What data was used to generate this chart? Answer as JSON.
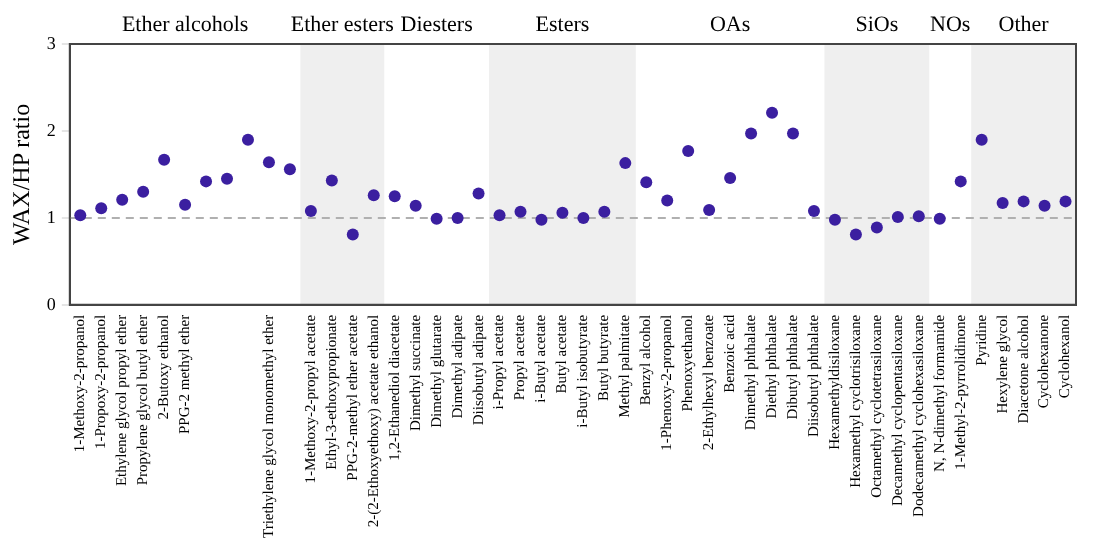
{
  "chart_data": {
    "type": "scatter",
    "ylabel": "WAX/HP ratio",
    "categories": [
      "1-Methoxy-2-propanol",
      "1-Propoxy-2-propanol",
      "Ethylene glycol propyl ether",
      "Propylene glycol butyl ether",
      "2-Butoxy ethanol",
      "PPG-2 methyl ether",
      null,
      null,
      null,
      "Triethylene glycol monomethyl ether",
      null,
      "1-Methoxy-2-propyl acetate",
      "Ethyl-3-ethoxypropionate",
      "PPG-2-methyl ether acetate",
      "2-(2-Ethoxyethoxy) acetate ethanol",
      "1,2-Ethanediol diacetate",
      "Dimethyl succinate",
      "Dimethyl glutarate",
      "Dimethyl adipate",
      "Diisobutyl adipate",
      "i-Propyl acetate",
      "Propyl acetate",
      "i-Butyl acetate",
      "Butyl acetate",
      "i-Butyl isobutyrate",
      "Butyl butyrate",
      "Methyl palmitate",
      "Benzyl alcohol",
      "1-Phenoxy-2-propanol",
      "Phenoxyethanol",
      "2-Ethylhexyl benzoate",
      "Benzoic acid",
      "Dimethyl phthalate",
      "Diethyl phthalate",
      "Dibutyl phthalate",
      "Diisobutyl phthalate",
      "Hexamethyldisiloxane",
      "Hexamethyl cyclotrisiloxane",
      "Octamethyl cyclotetrasiloxane",
      "Decamethyl cyclopentasiloxane",
      "Dodecamethyl cyclohexasiloxane",
      "N, N-dimethyl formamide",
      "1-Methyl-2-pyrrolidinone",
      "Pyridine",
      "Hexylene glycol",
      "Diacetone alcohol",
      "Cyclohexanone",
      "Cyclohexanol"
    ],
    "series": [
      {
        "color": "#3b1fa0",
        "values": [
          1.03,
          1.11,
          1.21,
          1.3,
          1.67,
          1.15,
          1.42,
          1.45,
          1.9,
          1.64,
          1.56,
          1.08,
          1.43,
          0.81,
          1.26,
          1.25,
          1.14,
          0.99,
          1.0,
          1.28,
          1.03,
          1.07,
          0.98,
          1.06,
          1.0,
          1.07,
          1.63,
          1.41,
          1.2,
          1.77,
          1.09,
          1.46,
          1.97,
          2.21,
          1.97,
          1.08,
          0.98,
          0.81,
          0.89,
          1.01,
          1.02,
          0.99,
          1.42,
          1.9,
          1.17,
          1.19,
          1.14,
          1.19
        ]
      }
    ],
    "ylim": [
      0,
      3
    ],
    "yticks": [
      0,
      1,
      2,
      3
    ],
    "grid": false,
    "legend": false,
    "marker": "circle",
    "ref_lines": [
      {
        "axis": "y",
        "value": 1,
        "color": "#b0b0b0",
        "line_style": "dashed"
      }
    ],
    "annotations": [
      "Ether alcohols",
      "Diesters",
      "OAs",
      "NOs"
    ],
    "bands": [
      {
        "axis": "x",
        "from": "1-Methoxy-2-propyl acetate",
        "to": "2-(2-Ethoxyethoxy) acetate ethanol",
        "label": "Ether esters",
        "color": "#efefef"
      },
      {
        "axis": "x",
        "from": "i-Propyl acetate",
        "to": "Methyl palmitate",
        "label": "Esters",
        "color": "#efefef"
      },
      {
        "axis": "x",
        "from": "Hexamethyldisiloxane",
        "to": "Dodecamethyl cyclohexasiloxane",
        "label": "SiOs",
        "color": "#efefef"
      },
      {
        "axis": "x",
        "from": "Pyridine",
        "to": "Cyclohexanol",
        "label": "Other",
        "color": "#efefef"
      }
    ]
  }
}
